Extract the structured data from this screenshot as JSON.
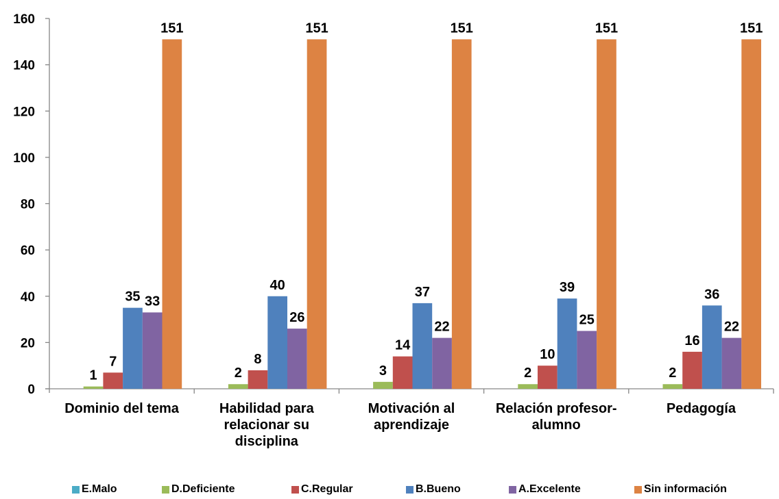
{
  "chart_data": {
    "type": "bar",
    "categories": [
      "Dominio del tema",
      "Habilidad para relacionar su disciplina",
      "Motivación al aprendizaje",
      "Relación profesor-alumno",
      "Pedagogía"
    ],
    "category_lines": [
      [
        "Dominio del tema"
      ],
      [
        "Habilidad para",
        "relacionar su",
        "disciplina"
      ],
      [
        "Motivación al",
        "aprendizaje"
      ],
      [
        "Relación profesor-",
        "alumno"
      ],
      [
        "Pedagogía"
      ]
    ],
    "series": [
      {
        "name": "E.Malo",
        "color": "#4bacc6",
        "values": [
          0,
          0,
          0,
          0,
          0
        ],
        "labels": [
          "",
          "",
          "",
          "",
          ""
        ]
      },
      {
        "name": "D.Deficiente",
        "color": "#9bbb59",
        "values": [
          1,
          2,
          3,
          2,
          2
        ],
        "labels": [
          "1",
          "2",
          "3",
          "2",
          "2"
        ]
      },
      {
        "name": "C.Regular",
        "color": "#c0504d",
        "values": [
          7,
          8,
          14,
          10,
          16
        ],
        "labels": [
          "7",
          "8",
          "14",
          "10",
          "16"
        ]
      },
      {
        "name": "B.Bueno",
        "color": "#4f81bd",
        "values": [
          35,
          40,
          37,
          39,
          36
        ],
        "labels": [
          "35",
          "40",
          "37",
          "39",
          "36"
        ]
      },
      {
        "name": "A.Excelente",
        "color": "#8064a2",
        "values": [
          33,
          26,
          22,
          25,
          22
        ],
        "labels": [
          "33",
          "26",
          "22",
          "25",
          "22"
        ]
      },
      {
        "name": "Sin información",
        "color": "#dd8343",
        "values": [
          151,
          151,
          151,
          151,
          151
        ],
        "labels": [
          "151",
          "151",
          "151",
          "151",
          "151"
        ]
      }
    ],
    "ylim": [
      0,
      160
    ],
    "yticks": [
      "0",
      "20",
      "40",
      "60",
      "80",
      "100",
      "120",
      "140",
      "160"
    ],
    "grid": false,
    "legend_position": "bottom"
  }
}
